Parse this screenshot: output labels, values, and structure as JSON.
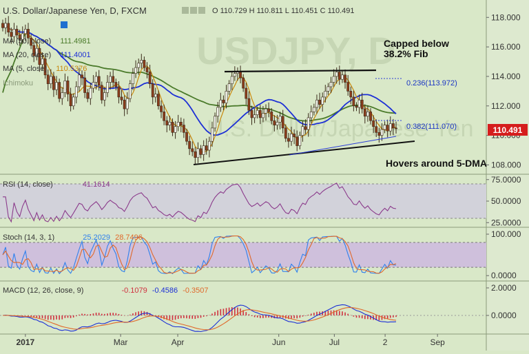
{
  "header": {
    "symbol": "U.S. Dollar/Japanese Yen, D, FXCM",
    "ohlc": "O 110.729  H 110.811  L 110.451  C 110.491"
  },
  "indicators": {
    "ma1": {
      "label": "MA (50, close)",
      "value": "111.4981"
    },
    "ma2": {
      "label": "MA (20, close)",
      "value": "111.4001"
    },
    "ma3": {
      "label": "MA (5, close)",
      "value": "110.5376"
    },
    "ichimoku": {
      "label": "Ichimoku"
    }
  },
  "watermark": {
    "big": "USDJPY, D",
    "small": "U.S. Dollar/Japanese Yen"
  },
  "annotations": {
    "capped_line1": "Capped below",
    "capped_line2": "38.2% Fib",
    "hovers": "Hovers around 5-DMA",
    "fib236": "0.236(113.972)",
    "fib382": "0.382(111.070)"
  },
  "price_tag": "110.491",
  "rsi": {
    "label": "RSI (14, close)",
    "value": "41.1614"
  },
  "stoch": {
    "label": "Stoch (14, 3, 1)",
    "k": "25.2029",
    "d": "28.7496"
  },
  "macd": {
    "label": "MACD (12, 26, close, 9)",
    "hist": "-0.1079",
    "macd": "-0.4586",
    "signal": "-0.3507"
  },
  "colors": {
    "bg": "#d9e8c8",
    "ma50": "#4a7a2a",
    "ma20": "#1c2fd6",
    "ma5": "#c8870c",
    "rsi": "#8b3a8b",
    "stochK": "#2f80ed",
    "stochD": "#e0682a",
    "hist": "#d0303f",
    "tag": "#d51d1d"
  },
  "chart_data": [
    {
      "type": "candlestick",
      "title": "U.S. Dollar/Japanese Yen, D, FXCM",
      "x_ticks": [
        "2017",
        "Mar",
        "Apr",
        "Jun",
        "Jul",
        "2",
        "Sep"
      ],
      "y_ticks": [
        "118.000",
        "116.000",
        "114.000",
        "112.000",
        "110.000",
        "108.000"
      ],
      "ylim": [
        107.6,
        118.9
      ],
      "closes": [
        117.3,
        117.6,
        117.0,
        116.7,
        117.2,
        116.8,
        116.5,
        116.9,
        117.2,
        116.6,
        116.1,
        115.4,
        115.9,
        114.8,
        115.2,
        114.1,
        113.5,
        114.0,
        113.1,
        113.6,
        112.5,
        112.9,
        113.7,
        112.8,
        112.0,
        112.6,
        113.3,
        114.1,
        113.9,
        112.9,
        112.5,
        113.2,
        113.6,
        114.0,
        113.4,
        112.4,
        112.9,
        113.6,
        114.0,
        113.6,
        113.3,
        112.6,
        112.4,
        111.8,
        112.5,
        113.5,
        114.2,
        114.6,
        114.9,
        115.1,
        114.6,
        114.3,
        113.5,
        112.6,
        112.8,
        112.0,
        111.6,
        111.0,
        110.7,
        110.9,
        110.2,
        110.6,
        110.9,
        110.7,
        110.2,
        109.6,
        109.1,
        108.9,
        108.5,
        109.1,
        108.7,
        109.3,
        109.0,
        109.6,
        110.5,
        111.3,
        111.9,
        112.4,
        112.2,
        113.0,
        113.5,
        114.0,
        114.2,
        114.3,
        113.9,
        113.2,
        112.5,
        111.7,
        111.2,
        111.4,
        111.7,
        111.2,
        111.5,
        111.8,
        111.6,
        111.0,
        110.7,
        110.9,
        111.3,
        110.5,
        109.8,
        109.6,
        110.1,
        109.9,
        109.3,
        110.0,
        110.6,
        110.4,
        111.2,
        111.6,
        111.9,
        112.4,
        112.1,
        112.6,
        113.0,
        113.3,
        113.6,
        114.0,
        114.3,
        113.8,
        114.1,
        113.6,
        113.0,
        112.6,
        112.0,
        111.9,
        112.4,
        111.8,
        111.3,
        111.6,
        111.0,
        110.6,
        110.2,
        110.0,
        110.4,
        110.7,
        110.3,
        110.8,
        110.5,
        110.491
      ],
      "series": [
        {
          "name": "MA (50, close)",
          "value": 111.4981
        },
        {
          "name": "MA (20, close)",
          "value": 111.4001
        },
        {
          "name": "MA (5, close)",
          "value": 110.5376
        }
      ],
      "fib_levels": [
        {
          "ratio": 0.236,
          "price": 113.972
        },
        {
          "ratio": 0.382,
          "price": 111.07
        }
      ],
      "last_price": 110.491
    },
    {
      "type": "line",
      "title": "RSI (14, close)",
      "y_ticks": [
        "75.0000",
        "50.0000",
        "25.0000"
      ],
      "ylim": [
        22,
        78
      ],
      "last": 41.1614
    },
    {
      "type": "line",
      "title": "Stoch (14, 3, 1)",
      "y_ticks": [
        "100.000",
        "0.0000"
      ],
      "ylim": [
        -8,
        110
      ],
      "series": [
        {
          "name": "%K",
          "last": 25.2029
        },
        {
          "name": "%D",
          "last": 28.7496
        }
      ]
    },
    {
      "type": "bar+line",
      "title": "MACD (12, 26, close, 9)",
      "y_ticks": [
        "2.0000",
        "0.0000"
      ],
      "ylim": [
        -1.2,
        2.3
      ],
      "series": [
        {
          "name": "Histogram",
          "last": -0.1079
        },
        {
          "name": "MACD",
          "last": -0.4586
        },
        {
          "name": "Signal",
          "last": -0.3507
        }
      ]
    }
  ]
}
